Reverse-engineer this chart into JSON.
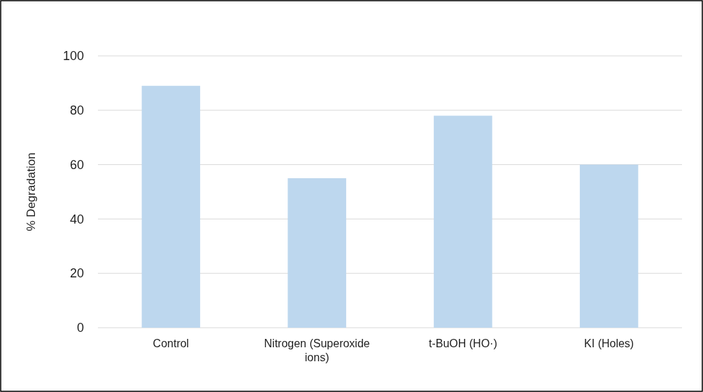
{
  "chart_data": {
    "type": "bar",
    "ylabel": "% Degradation",
    "categories": [
      "Control",
      "Nitrogen (Superoxide ions)",
      "t-BuOH (HO·)",
      "KI (Holes)"
    ],
    "values": [
      89,
      55,
      78,
      60
    ],
    "color": "#bdd7ee",
    "ylim": [
      0,
      100
    ],
    "yticks": [
      0,
      20,
      40,
      60,
      80,
      100
    ],
    "grid": "y"
  }
}
